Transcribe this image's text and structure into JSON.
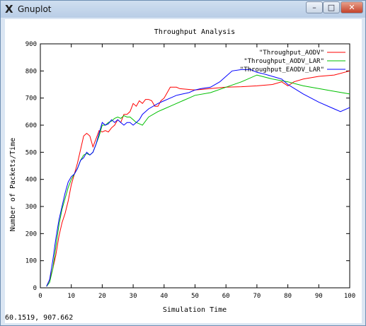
{
  "window": {
    "title": "Gnuplot",
    "app_icon": "X",
    "minimize_glyph": "–",
    "maximize_glyph": "□",
    "close_glyph": "✕"
  },
  "status": {
    "coords": "60.1519,  907.662"
  },
  "colors": {
    "axis": "#000000",
    "series": [
      "#ff0000",
      "#00c000",
      "#0000ff"
    ]
  },
  "chart_data": {
    "type": "line",
    "title": "Throughput Analysis",
    "xlabel": "Simulation Time",
    "ylabel": "Number of Packets/Time",
    "xlim": [
      0,
      100
    ],
    "ylim": [
      0,
      900
    ],
    "xticks": [
      0,
      10,
      20,
      30,
      40,
      50,
      60,
      70,
      80,
      90,
      100
    ],
    "yticks": [
      0,
      100,
      200,
      300,
      400,
      500,
      600,
      700,
      800,
      900
    ],
    "grid": false,
    "legend_position": "top-right",
    "series": [
      {
        "name": "\"Throughput_AODV\"",
        "color": "#ff0000",
        "x": [
          2,
          3,
          4,
          5,
          6,
          7,
          8,
          9,
          10,
          11,
          12,
          13,
          14,
          15,
          16,
          17,
          18,
          19,
          20,
          21,
          22,
          23,
          24,
          25,
          26,
          27,
          28,
          29,
          30,
          31,
          32,
          33,
          34,
          35,
          36,
          37,
          38,
          39,
          40,
          41,
          42,
          43,
          44,
          45,
          50,
          55,
          60,
          65,
          70,
          75,
          78,
          80,
          82,
          85,
          90,
          95,
          100
        ],
        "y": [
          5,
          30,
          70,
          120,
          190,
          240,
          275,
          320,
          380,
          420,
          460,
          510,
          560,
          570,
          560,
          520,
          550,
          580,
          575,
          580,
          575,
          590,
          600,
          620,
          610,
          640,
          640,
          650,
          680,
          670,
          690,
          680,
          695,
          695,
          690,
          670,
          670,
          690,
          700,
          720,
          740,
          740,
          740,
          735,
          730,
          735,
          740,
          742,
          745,
          750,
          760,
          745,
          760,
          770,
          780,
          785,
          800
        ]
      },
      {
        "name": "\"Throughput_AODV_LAR\"",
        "color": "#00c000",
        "x": [
          2,
          3,
          4,
          5,
          6,
          7,
          8,
          9,
          10,
          11,
          12,
          13,
          14,
          15,
          16,
          17,
          18,
          19,
          20,
          21,
          22,
          23,
          24,
          25,
          26,
          27,
          28,
          29,
          30,
          31,
          32,
          33,
          35,
          38,
          40,
          42,
          44,
          46,
          48,
          50,
          55,
          60,
          65,
          70,
          75,
          80,
          85,
          90,
          95,
          100
        ],
        "y": [
          5,
          20,
          70,
          150,
          230,
          290,
          330,
          370,
          400,
          420,
          440,
          470,
          490,
          495,
          490,
          500,
          530,
          560,
          600,
          600,
          610,
          615,
          625,
          630,
          625,
          635,
          630,
          630,
          620,
          610,
          605,
          600,
          630,
          650,
          660,
          670,
          680,
          690,
          700,
          710,
          720,
          740,
          760,
          785,
          770,
          760,
          745,
          735,
          725,
          715
        ]
      },
      {
        "name": "\"Throughput_EAODV_LAR\"",
        "color": "#0000ff",
        "x": [
          2,
          3,
          4,
          5,
          6,
          7,
          8,
          9,
          10,
          11,
          12,
          13,
          14,
          15,
          16,
          17,
          18,
          19,
          20,
          21,
          22,
          23,
          24,
          25,
          26,
          27,
          28,
          29,
          30,
          31,
          32,
          33,
          35,
          38,
          40,
          42,
          44,
          46,
          48,
          50,
          52,
          55,
          58,
          60,
          62,
          65,
          68,
          70,
          72,
          75,
          78,
          80,
          85,
          90,
          95,
          97,
          100
        ],
        "y": [
          5,
          30,
          100,
          180,
          250,
          300,
          350,
          390,
          410,
          420,
          440,
          470,
          480,
          500,
          490,
          500,
          530,
          570,
          610,
          600,
          605,
          620,
          610,
          620,
          610,
          600,
          610,
          610,
          600,
          610,
          620,
          640,
          660,
          680,
          690,
          700,
          710,
          715,
          720,
          730,
          735,
          740,
          760,
          780,
          800,
          805,
          805,
          795,
          790,
          780,
          770,
          750,
          715,
          685,
          660,
          650,
          665
        ]
      }
    ]
  }
}
